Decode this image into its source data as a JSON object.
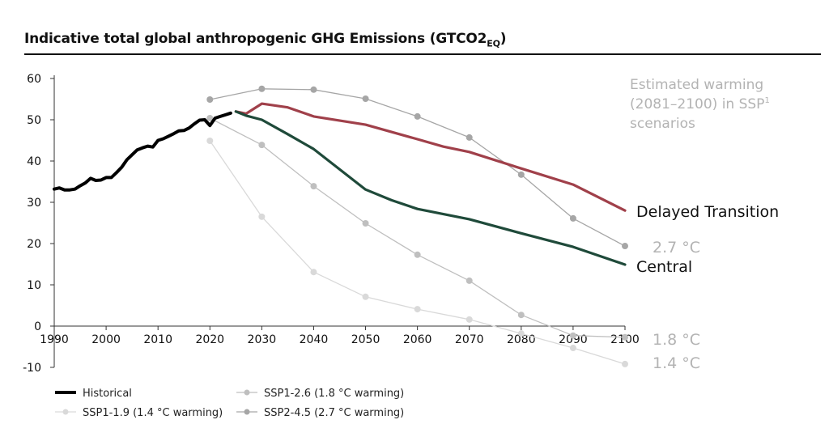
{
  "title": {
    "main": "Indicative total global anthropogenic GHG Emissions (GTCO2",
    "sub": "EQ",
    "close": ")"
  },
  "annotation": {
    "line1": "Estimated warming",
    "line2": "(2081–2100) in SSP",
    "sup": "1",
    "line3": "scenarios"
  },
  "chart_data": {
    "type": "line",
    "xlim": [
      1990,
      2100
    ],
    "ylim": [
      -10,
      60
    ],
    "xticks": [
      1990,
      2000,
      2010,
      2020,
      2030,
      2040,
      2050,
      2060,
      2070,
      2080,
      2090,
      2100
    ],
    "yticks": [
      60,
      50,
      40,
      30,
      20,
      10,
      0,
      -10
    ],
    "grid": false,
    "legend_position": "bottom-left",
    "series": [
      {
        "name": "Historical",
        "color": "#000000",
        "markers": false,
        "x": [
          1990,
          1991,
          1992,
          1993,
          1994,
          1995,
          1996,
          1997,
          1998,
          1999,
          2000,
          2001,
          2002,
          2003,
          2004,
          2005,
          2006,
          2007,
          2008,
          2009,
          2010,
          2011,
          2012,
          2013,
          2014,
          2015,
          2016,
          2017,
          2018,
          2019,
          2020,
          2021,
          2022,
          2023,
          2024
        ],
        "y": [
          33.2,
          33.5,
          33,
          33,
          33.2,
          34,
          34.7,
          35.8,
          35.3,
          35.4,
          36,
          36,
          37.2,
          38.5,
          40.3,
          41.5,
          42.7,
          43.2,
          43.6,
          43.4,
          45,
          45.4,
          46,
          46.6,
          47.3,
          47.4,
          48,
          49,
          49.9,
          50,
          48.6,
          50.4,
          50.8,
          51.2,
          51.6
        ]
      },
      {
        "name": "SSP1-1.9 (1.4 °C warming)",
        "color": "#d9d9d9",
        "markers": true,
        "x": [
          2020,
          2030,
          2040,
          2050,
          2060,
          2070,
          2080,
          2090,
          2100
        ],
        "y": [
          44.9,
          26.5,
          13.1,
          7.1,
          4.1,
          1.6,
          -1.8,
          -5.3,
          -9.2
        ]
      },
      {
        "name": "SSP1-2.6 (1.8 °C warming)",
        "color": "#bfbfbf",
        "markers": true,
        "x": [
          2020,
          2030,
          2040,
          2050,
          2060,
          2070,
          2080,
          2090,
          2100
        ],
        "y": [
          50.4,
          43.9,
          33.9,
          24.9,
          17.3,
          11,
          2.7,
          -2.3,
          -2.7
        ]
      },
      {
        "name": "SSP2-4.5 (2.7 °C warming)",
        "color": "#a6a6a6",
        "markers": true,
        "x": [
          2020,
          2030,
          2040,
          2050,
          2060,
          2070,
          2080,
          2090,
          2100
        ],
        "y": [
          54.9,
          57.5,
          57.3,
          55.1,
          50.8,
          45.7,
          36.7,
          26.1,
          19.4
        ]
      },
      {
        "name": "Delayed Transition",
        "color": "#a0404a",
        "markers": false,
        "x": [
          2025,
          2027,
          2030,
          2035,
          2040,
          2050,
          2060,
          2065,
          2070,
          2080,
          2090,
          2100
        ],
        "y": [
          52,
          51.5,
          53.9,
          53,
          50.8,
          48.8,
          45.3,
          43.5,
          42.2,
          38.2,
          34.3,
          28
        ]
      },
      {
        "name": "Central",
        "color": "#1f4a3a",
        "markers": false,
        "x": [
          2025,
          2027,
          2030,
          2035,
          2040,
          2045,
          2050,
          2055,
          2060,
          2070,
          2080,
          2090,
          2100
        ],
        "y": [
          52,
          51,
          50,
          46.5,
          42.9,
          38,
          33.1,
          30.5,
          28.4,
          25.9,
          22.5,
          19.2,
          14.9
        ]
      }
    ],
    "end_labels": [
      "Delayed Transition",
      "Central",
      "2.7 °C",
      "1.8 °C",
      "1.4 °C"
    ]
  }
}
